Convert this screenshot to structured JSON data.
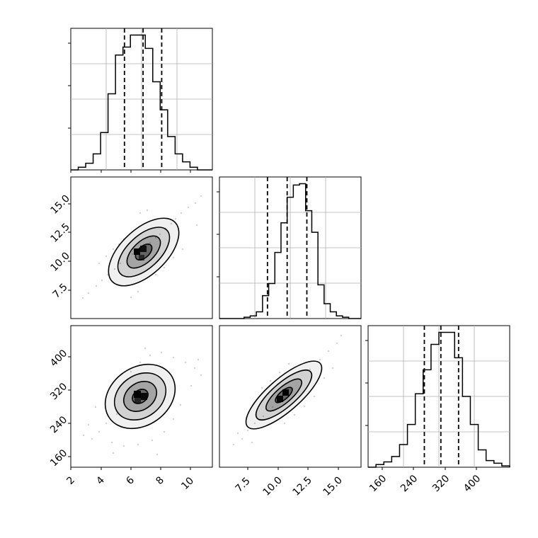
{
  "chart_data": [
    {
      "type": "histogram",
      "panel": "x1",
      "bin_edges": [
        2.0,
        2.5,
        3.0,
        3.5,
        4.0,
        4.5,
        5.0,
        5.5,
        6.0,
        6.5,
        7.0,
        7.5,
        8.0,
        8.5,
        9.0,
        9.5,
        10.0,
        10.5,
        11.0,
        11.5
      ],
      "values": [
        0,
        2,
        5,
        12,
        28,
        57,
        86,
        92,
        101,
        101,
        91,
        66,
        45,
        25,
        12,
        6,
        2,
        0,
        0
      ],
      "quantiles": [
        5.6,
        6.85,
        8.1
      ],
      "xlim": [
        2.0,
        11.5
      ]
    },
    {
      "type": "histogram",
      "panel": "x2",
      "bin_edges": [
        5.0,
        5.5,
        6.0,
        6.5,
        7.0,
        7.5,
        8.0,
        8.5,
        9.0,
        9.5,
        10.0,
        10.5,
        11.0,
        11.5,
        12.0,
        12.5,
        13.0,
        13.5,
        14.0,
        14.5,
        15.0,
        15.5,
        16.0,
        16.5
      ],
      "values": [
        0,
        0,
        0,
        0,
        1,
        2,
        5,
        17,
        26,
        49,
        71,
        90,
        99,
        100,
        80,
        64,
        25,
        11,
        5,
        2,
        1,
        0,
        0
      ],
      "quantiles": [
        8.9,
        10.5,
        12.1
      ],
      "xlim": [
        5.0,
        16.5
      ],
      "xticks": [
        "7.5",
        "10.0",
        "12.5",
        "15.0"
      ]
    },
    {
      "type": "histogram",
      "panel": "x3",
      "bin_edges": [
        120,
        140,
        160,
        180,
        200,
        220,
        240,
        260,
        280,
        300,
        320,
        340,
        360,
        380,
        400,
        420,
        440,
        460,
        480
      ],
      "values": [
        0,
        2,
        4,
        8,
        17,
        32,
        55,
        73,
        92,
        101,
        101,
        82,
        53,
        32,
        13,
        5,
        3,
        1
      ],
      "quantiles": [
        263,
        305,
        350
      ],
      "xlim": [
        120,
        480
      ],
      "xticks": [
        "160",
        "240",
        "320",
        "400"
      ]
    },
    {
      "type": "scatter-density",
      "panel": "x2-vs-x1",
      "x_range": [
        2.0,
        11.5
      ],
      "y_range": [
        5.0,
        16.5
      ],
      "center": [
        6.85,
        10.5
      ],
      "xticks": [
        "2",
        "4",
        "6",
        "8",
        "10"
      ],
      "yticks": [
        "7.5",
        "10.0",
        "12.5",
        "15.0"
      ]
    },
    {
      "type": "scatter-density",
      "panel": "x3-vs-x1",
      "x_range": [
        2.0,
        11.5
      ],
      "y_range": [
        120,
        480
      ],
      "center": [
        6.85,
        305
      ],
      "xticks": [
        "2",
        "4",
        "6",
        "8",
        "10"
      ],
      "yticks": [
        "160",
        "240",
        "320",
        "400"
      ]
    },
    {
      "type": "scatter-density",
      "panel": "x3-vs-x2",
      "x_range": [
        5.0,
        16.5
      ],
      "y_range": [
        120,
        480
      ],
      "center": [
        10.5,
        305
      ],
      "xticks": [
        "7.5",
        "10.0",
        "12.5",
        "15.0"
      ]
    }
  ]
}
